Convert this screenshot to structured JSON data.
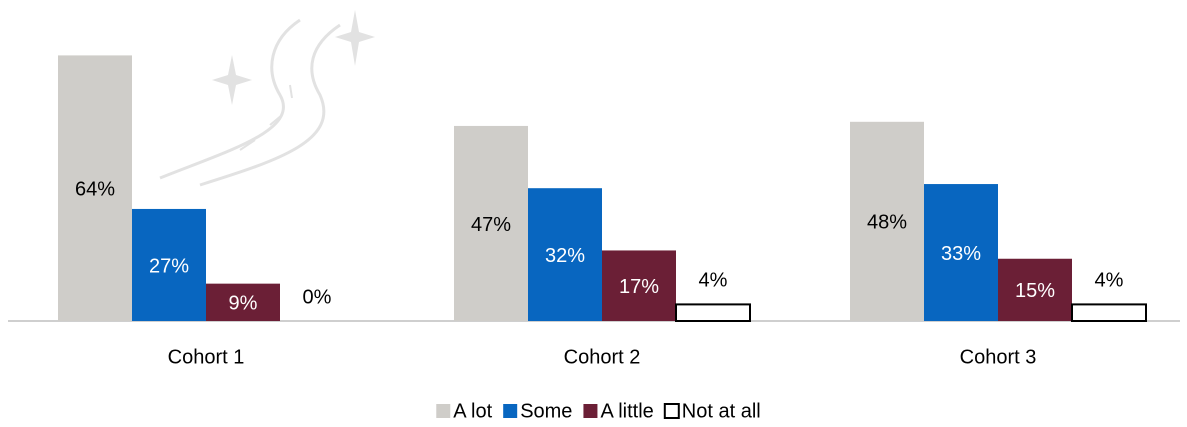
{
  "chart_data": {
    "type": "bar",
    "categories": [
      "Cohort 1",
      "Cohort 2",
      "Cohort 3"
    ],
    "series": [
      {
        "name": "A lot",
        "color": "#cfcdc9",
        "values": [
          64,
          47,
          48
        ],
        "value_labels": [
          "64%",
          "47%",
          "48%"
        ]
      },
      {
        "name": "Some",
        "color": "#0866c0",
        "values": [
          27,
          32,
          33
        ],
        "value_labels": [
          "27%",
          "32%",
          "33%"
        ]
      },
      {
        "name": "A little",
        "color": "#6b1f36",
        "values": [
          9,
          17,
          15
        ],
        "value_labels": [
          "9%",
          "17%",
          "15%"
        ]
      },
      {
        "name": "Not at all",
        "color": "#ffffff",
        "values": [
          0,
          4,
          4
        ],
        "value_labels": [
          "0%",
          "4%",
          "4%"
        ]
      }
    ],
    "legend": "bottom"
  }
}
